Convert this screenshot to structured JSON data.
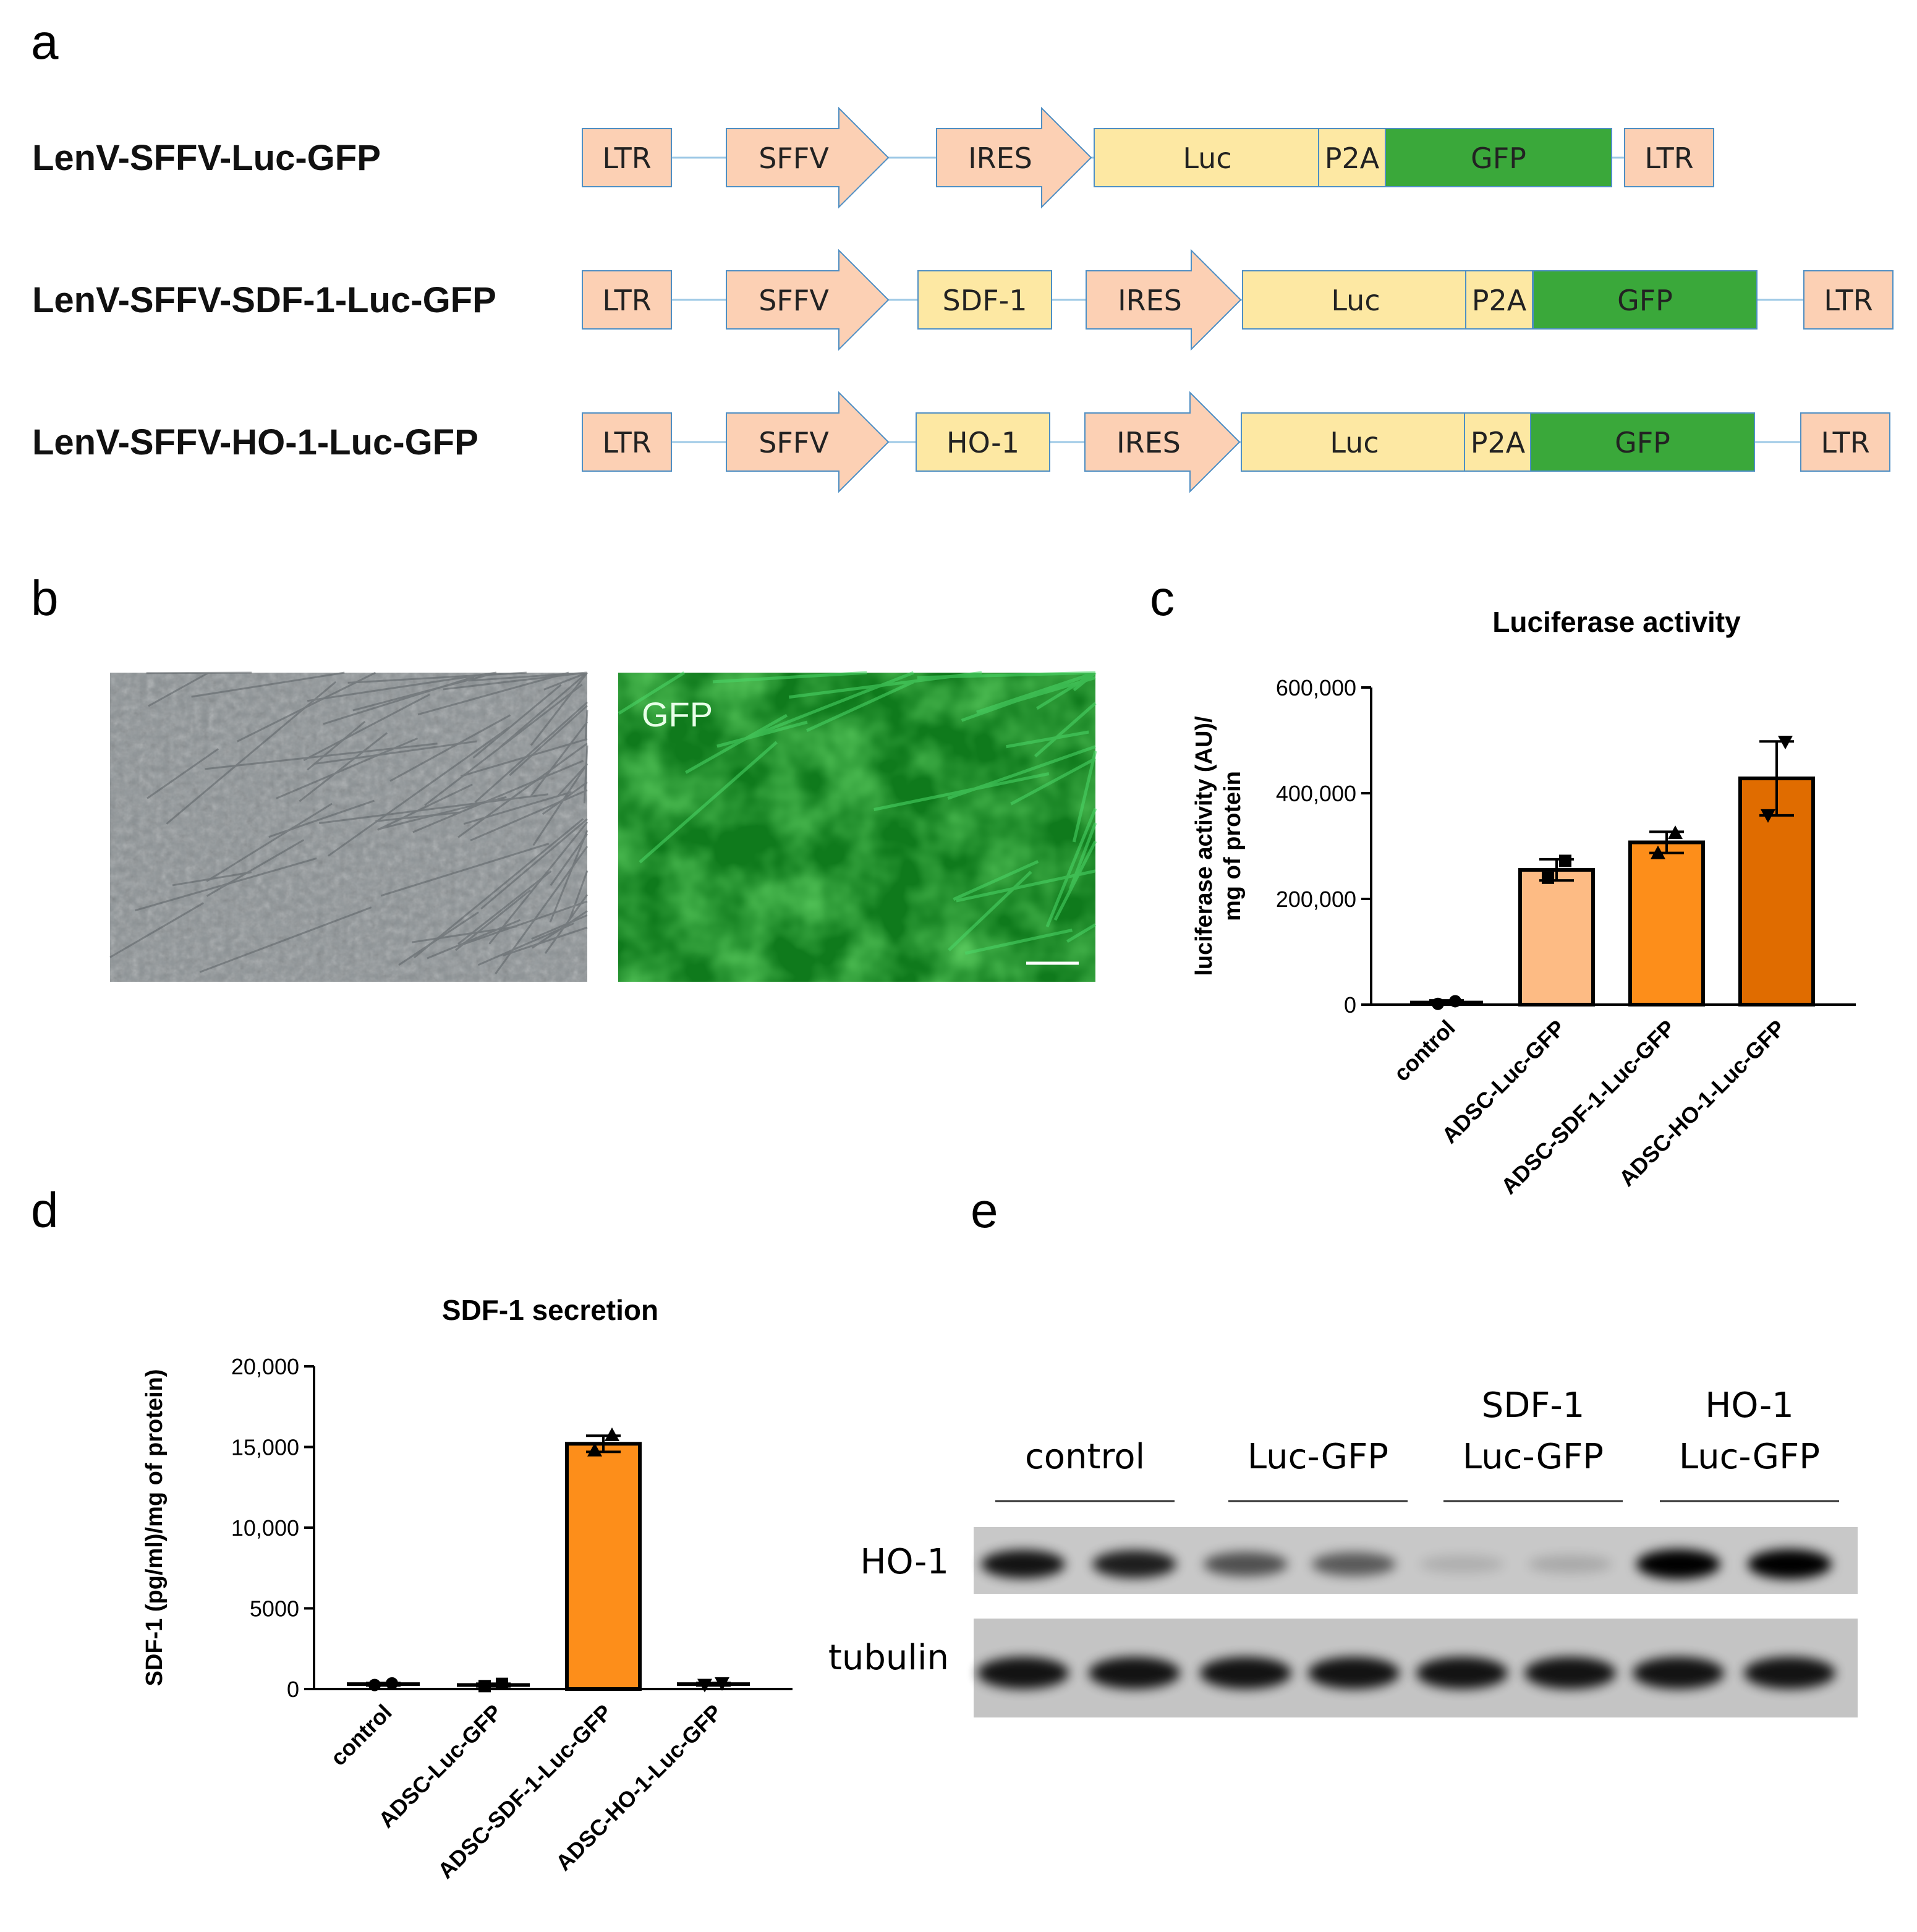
{
  "panel_labels": {
    "a": "a",
    "b": "b",
    "c": "c",
    "d": "d",
    "e": "e"
  },
  "colors": {
    "salmon": "#fcd0b4",
    "salmon_border": "#4f8fc4",
    "yellow": "#fde8a3",
    "green": "#3aa83a",
    "bar_light": "#fdbb84",
    "bar_mid": "#fd8e1a",
    "bar_dark": "#e06c00",
    "line": "#9ec9e6"
  },
  "constructs": [
    {
      "name": "LenV-SFFV-Luc-GFP",
      "elements": [
        {
          "type": "box",
          "label": "LTR"
        },
        {
          "type": "arrow",
          "label": "SFFV"
        },
        {
          "type": "arrow",
          "label": "IRES"
        },
        {
          "type": "yellow",
          "label": "Luc"
        },
        {
          "type": "yellow",
          "label": "P2A"
        },
        {
          "type": "green",
          "label": "GFP"
        },
        {
          "type": "box",
          "label": "LTR"
        }
      ]
    },
    {
      "name": "LenV-SFFV-SDF-1-Luc-GFP",
      "elements": [
        {
          "type": "box",
          "label": "LTR"
        },
        {
          "type": "arrow",
          "label": "SFFV"
        },
        {
          "type": "yellow",
          "label": "SDF-1"
        },
        {
          "type": "arrow",
          "label": "IRES"
        },
        {
          "type": "yellow",
          "label": "Luc"
        },
        {
          "type": "yellow",
          "label": "P2A"
        },
        {
          "type": "green",
          "label": "GFP"
        },
        {
          "type": "box",
          "label": "LTR"
        }
      ]
    },
    {
      "name": "LenV-SFFV-HO-1-Luc-GFP",
      "elements": [
        {
          "type": "box",
          "label": "LTR"
        },
        {
          "type": "arrow",
          "label": "SFFV"
        },
        {
          "type": "yellow",
          "label": "HO-1"
        },
        {
          "type": "arrow",
          "label": "IRES"
        },
        {
          "type": "yellow",
          "label": "Luc"
        },
        {
          "type": "yellow",
          "label": "P2A"
        },
        {
          "type": "green",
          "label": "GFP"
        },
        {
          "type": "box",
          "label": "LTR"
        }
      ]
    }
  ],
  "micrographs": {
    "gfp_label": "GFP"
  },
  "chart_data": [
    {
      "type": "bar",
      "title": "Luciferase activity",
      "ylabel_lines": [
        "luciferase activity (AU)/",
        "mg of protein"
      ],
      "categories": [
        "control",
        "ADSC-Luc-GFP",
        "ADSC-SDF-1-Luc-GFP",
        "ADSC-HO-1-Luc-GFP"
      ],
      "values": [
        4000,
        255000,
        307000,
        428000
      ],
      "error_bars": [
        4000,
        20000,
        20000,
        70000
      ],
      "points": [
        [
          1500,
          6500
        ],
        [
          240000,
          272000
        ],
        [
          287000,
          325000
        ],
        [
          358000,
          497000
        ]
      ],
      "ylim": [
        0,
        600000
      ],
      "yticks": [
        0,
        200000,
        400000,
        600000
      ],
      "ytick_labels": [
        "0",
        "200,000",
        "400,000",
        "600,000"
      ],
      "bar_colors": [
        "#ffffff",
        "#fdbb84",
        "#fd8e1a",
        "#e06c00"
      ]
    },
    {
      "type": "bar",
      "title": "SDF-1 secretion",
      "ylabel_lines": [
        "SDF-1 (pg/ml)/mg of protein)"
      ],
      "categories": [
        "control",
        "ADSC-Luc-GFP",
        "ADSC-SDF-1-Luc-GFP",
        "ADSC-HO-1-Luc-GFP"
      ],
      "values": [
        300,
        250,
        15200,
        300
      ],
      "error_bars": [
        80,
        80,
        500,
        80
      ],
      "points": [
        [
          250,
          350
        ],
        [
          180,
          320
        ],
        [
          14800,
          15750
        ],
        [
          250,
          350
        ]
      ],
      "ylim": [
        0,
        20000
      ],
      "yticks": [
        0,
        5000,
        10000,
        15000,
        20000
      ],
      "ytick_labels": [
        "0",
        "5000",
        "10,000",
        "15,000",
        "20,000"
      ],
      "bar_colors": [
        "#ffffff",
        "#ffffff",
        "#fd8e1a",
        "#ffffff"
      ]
    }
  ],
  "blot": {
    "groups": [
      {
        "line1": "",
        "line2": "control"
      },
      {
        "line1": "",
        "line2": "Luc-GFP"
      },
      {
        "line1": "SDF-1",
        "line2": "Luc-GFP"
      },
      {
        "line1": "HO-1",
        "line2": "Luc-GFP"
      }
    ],
    "rows": [
      "HO-1",
      "tubulin"
    ],
    "ho1_intensity": [
      0.9,
      0.85,
      0.6,
      0.55,
      0.12,
      0.15,
      1.0,
      1.0
    ],
    "tubulin_intensity": [
      0.9,
      0.9,
      0.9,
      0.9,
      0.9,
      0.9,
      0.9,
      0.9
    ]
  }
}
